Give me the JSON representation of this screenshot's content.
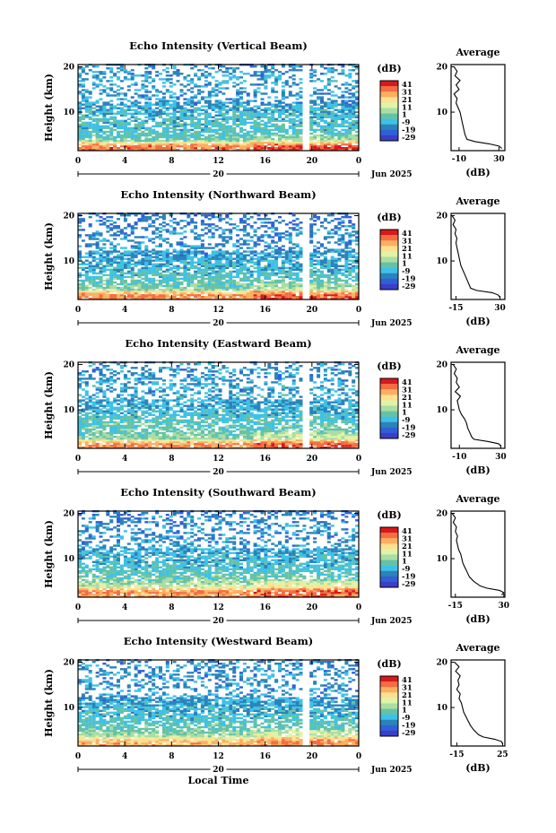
{
  "figure": {
    "xlabel": "Local Time",
    "ylabel": "Height (km)",
    "month_label": "Jun 2025",
    "day_label": "20",
    "colorbar_label": "(dB)",
    "colorbar_ticks": [
      "41",
      "31",
      "21",
      "11",
      "1",
      "-9",
      "-19",
      "-29"
    ],
    "colorbar_colors": [
      "#d7191c",
      "#f46d43",
      "#fdae61",
      "#fee090",
      "#e0f3a8",
      "#abdda4",
      "#66c2a5",
      "#3ec1e6",
      "#2b83ba",
      "#3060d8",
      "#3a3ec8"
    ],
    "profile_title": "Average",
    "profile_xlabel": "(dB)"
  },
  "chart_data": [
    {
      "type": "heatmap",
      "title": "Echo Intensity (Vertical Beam)",
      "xlabel": "",
      "ylabel": "Height (km)",
      "x_ticks": [
        "0",
        "4",
        "8",
        "12",
        "16",
        "20",
        "0"
      ],
      "y_ticks": [
        "20",
        "10"
      ],
      "xlim": [
        0,
        24
      ],
      "ylim": [
        1.5,
        20.5
      ],
      "gap_hours": [
        [
          19.2,
          19.6
        ]
      ],
      "profile": {
        "x_ticks": [
          "-10",
          "30"
        ],
        "xlim": [
          -18,
          36
        ],
        "y_ticks": [
          "20",
          "10"
        ],
        "heights": [
          2,
          2.5,
          3,
          3.5,
          4,
          5,
          6,
          7,
          8,
          9,
          10,
          11,
          12,
          13,
          14,
          15,
          16,
          17,
          18,
          19,
          20
        ],
        "values": [
          33,
          30,
          20,
          6,
          -2,
          -4,
          -5,
          -6,
          -7,
          -8,
          -9,
          -11,
          -13,
          -12,
          -15,
          -10,
          -13,
          -9,
          -14,
          -12,
          -15
        ]
      }
    },
    {
      "type": "heatmap",
      "title": "Echo Intensity (Northward Beam)",
      "xlabel": "",
      "ylabel": "Height (km)",
      "x_ticks": [
        "0",
        "4",
        "8",
        "12",
        "16",
        "20",
        "0"
      ],
      "y_ticks": [
        "20",
        "10"
      ],
      "xlim": [
        0,
        24
      ],
      "ylim": [
        1.5,
        20.5
      ],
      "gap_hours": [
        [
          19.2,
          19.6
        ]
      ],
      "profile": {
        "x_ticks": [
          "-15",
          "30"
        ],
        "xlim": [
          -20,
          35
        ],
        "y_ticks": [
          "20",
          "10"
        ],
        "heights": [
          2,
          2.5,
          3,
          3.5,
          4,
          5,
          6,
          7,
          8,
          9,
          10,
          11,
          12,
          13,
          14,
          15,
          16,
          17,
          18,
          19,
          20
        ],
        "values": [
          30,
          28,
          22,
          6,
          0,
          -2,
          -4,
          -6,
          -8,
          -10,
          -11,
          -12,
          -13,
          -14,
          -15,
          -14,
          -16,
          -15,
          -18,
          -16,
          -19
        ]
      }
    },
    {
      "type": "heatmap",
      "title": "Echo Intensity (Eastward Beam)",
      "xlabel": "",
      "ylabel": "Height (km)",
      "x_ticks": [
        "0",
        "4",
        "8",
        "12",
        "16",
        "20",
        "0"
      ],
      "y_ticks": [
        "20",
        "10"
      ],
      "xlim": [
        0,
        24
      ],
      "ylim": [
        1.5,
        20.5
      ],
      "gap_hours": [
        [
          19.2,
          19.6
        ]
      ],
      "profile": {
        "x_ticks": [
          "-10",
          "30"
        ],
        "xlim": [
          -18,
          34
        ],
        "y_ticks": [
          "20",
          "10"
        ],
        "heights": [
          2,
          2.5,
          3,
          3.5,
          4,
          5,
          6,
          7,
          8,
          9,
          10,
          11,
          12,
          13,
          14,
          15,
          16,
          17,
          18,
          19,
          20
        ],
        "values": [
          30,
          28,
          18,
          4,
          2,
          0,
          -2,
          -3,
          -5,
          -8,
          -10,
          -11,
          -12,
          -9,
          -14,
          -10,
          -13,
          -12,
          -15,
          -13,
          -16
        ]
      }
    },
    {
      "type": "heatmap",
      "title": "Echo Intensity (Southward Beam)",
      "xlabel": "",
      "ylabel": "Height (km)",
      "x_ticks": [
        "0",
        "4",
        "8",
        "12",
        "16",
        "20",
        "0"
      ],
      "y_ticks": [
        "20",
        "10"
      ],
      "xlim": [
        0,
        24
      ],
      "ylim": [
        1.5,
        20.5
      ],
      "gap_hours": [],
      "profile": {
        "x_ticks": [
          "-15",
          "30"
        ],
        "xlim": [
          -19,
          31
        ],
        "y_ticks": [
          "20",
          "10"
        ],
        "heights": [
          2,
          2.5,
          3,
          3.5,
          4,
          5,
          6,
          7,
          8,
          9,
          10,
          11,
          12,
          13,
          14,
          15,
          16,
          17,
          18,
          19,
          20
        ],
        "values": [
          28,
          30,
          26,
          14,
          8,
          2,
          -2,
          -4,
          -6,
          -8,
          -9,
          -10,
          -12,
          -13,
          -14,
          -13,
          -15,
          -14,
          -17,
          -15,
          -18
        ]
      }
    },
    {
      "type": "heatmap",
      "title": "Echo Intensity (Westward Beam)",
      "xlabel": "Local Time",
      "ylabel": "Height (km)",
      "x_ticks": [
        "0",
        "4",
        "8",
        "12",
        "16",
        "20",
        "0"
      ],
      "y_ticks": [
        "20",
        "10"
      ],
      "xlim": [
        0,
        24
      ],
      "ylim": [
        1.5,
        20.5
      ],
      "gap_hours": [
        [
          19.2,
          19.6
        ]
      ],
      "profile": {
        "x_ticks": [
          "-15",
          "25"
        ],
        "xlim": [
          -20,
          27
        ],
        "y_ticks": [
          "20",
          "10"
        ],
        "heights": [
          2,
          2.5,
          3,
          3.5,
          4,
          5,
          6,
          7,
          8,
          9,
          10,
          11,
          12,
          13,
          14,
          15,
          16,
          17,
          18,
          19,
          20
        ],
        "values": [
          25,
          24,
          18,
          8,
          4,
          0,
          -3,
          -5,
          -7,
          -9,
          -10,
          -11,
          -13,
          -12,
          -15,
          -13,
          -14,
          -12,
          -16,
          -13,
          -17
        ]
      }
    }
  ]
}
